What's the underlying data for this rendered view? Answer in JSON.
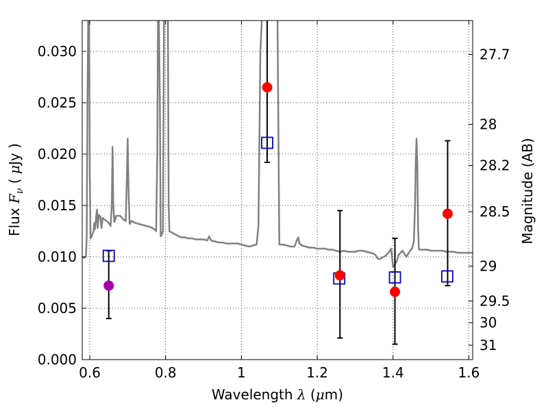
{
  "chart_data": {
    "type": "scatter",
    "xlabel": {
      "prefix": "Wavelength  ",
      "symbol": "λ",
      "units_open": " (",
      "units_mu": "μ",
      "units_rest": "m)"
    },
    "ylabel": {
      "prefix": "Flux  ",
      "symbol": "F",
      "subscript": "ν",
      "units_open": "  ( ",
      "units_mu": "μ",
      "units_rest": "Jy )"
    },
    "y2label": "Magnitude (AB)",
    "xlim": [
      0.58,
      1.61
    ],
    "ylim": [
      0.0,
      0.033
    ],
    "grid": true,
    "x_ticks": [
      {
        "value": 0.6,
        "label": "0.6"
      },
      {
        "value": 0.8,
        "label": "0.8"
      },
      {
        "value": 1.0,
        "label": "1"
      },
      {
        "value": 1.2,
        "label": "1.2"
      },
      {
        "value": 1.4,
        "label": "1.4"
      },
      {
        "value": 1.6,
        "label": "1.6"
      }
    ],
    "y_ticks": [
      {
        "value": 0.0,
        "label": "0.000"
      },
      {
        "value": 0.005,
        "label": "0.005"
      },
      {
        "value": 0.01,
        "label": "0.010"
      },
      {
        "value": 0.015,
        "label": "0.015"
      },
      {
        "value": 0.02,
        "label": "0.020"
      },
      {
        "value": 0.025,
        "label": "0.025"
      },
      {
        "value": 0.03,
        "label": "0.030"
      }
    ],
    "y2_ticks": [
      {
        "label": "27.7",
        "flux": 0.0297
      },
      {
        "label": "28",
        "flux": 0.0229
      },
      {
        "label": "28.2",
        "flux": 0.0189
      },
      {
        "label": "28.5",
        "flux": 0.0144
      },
      {
        "label": "29",
        "flux": 0.0091
      },
      {
        "label": "29.5",
        "flux": 0.0057
      },
      {
        "label": "30",
        "flux": 0.0036
      },
      {
        "label": "31",
        "flux": 0.0014
      }
    ],
    "spectrum": {
      "color": "#808080",
      "points": [
        [
          0.58,
          0.01
        ],
        [
          0.585,
          0.0099
        ],
        [
          0.59,
          0.0101
        ],
        [
          0.592,
          0.012
        ],
        [
          0.594,
          0.025
        ],
        [
          0.596,
          0.034
        ],
        [
          0.598,
          0.034
        ],
        [
          0.6,
          0.018
        ],
        [
          0.602,
          0.0118
        ],
        [
          0.605,
          0.012
        ],
        [
          0.61,
          0.0125
        ],
        [
          0.612,
          0.0133
        ],
        [
          0.614,
          0.0127
        ],
        [
          0.617,
          0.014
        ],
        [
          0.619,
          0.0146
        ],
        [
          0.621,
          0.0128
        ],
        [
          0.624,
          0.0141
        ],
        [
          0.628,
          0.0139
        ],
        [
          0.631,
          0.0128
        ],
        [
          0.634,
          0.0138
        ],
        [
          0.64,
          0.0136
        ],
        [
          0.648,
          0.0134
        ],
        [
          0.655,
          0.013
        ],
        [
          0.658,
          0.015
        ],
        [
          0.66,
          0.0207
        ],
        [
          0.662,
          0.015
        ],
        [
          0.665,
          0.0134
        ],
        [
          0.67,
          0.014
        ],
        [
          0.68,
          0.014
        ],
        [
          0.69,
          0.0136
        ],
        [
          0.695,
          0.0135
        ],
        [
          0.698,
          0.018
        ],
        [
          0.7,
          0.0215
        ],
        [
          0.702,
          0.017
        ],
        [
          0.705,
          0.0132
        ],
        [
          0.71,
          0.0135
        ],
        [
          0.72,
          0.0133
        ],
        [
          0.73,
          0.0132
        ],
        [
          0.74,
          0.0131
        ],
        [
          0.75,
          0.013
        ],
        [
          0.76,
          0.0129
        ],
        [
          0.77,
          0.0127
        ],
        [
          0.775,
          0.0125
        ],
        [
          0.778,
          0.02
        ],
        [
          0.78,
          0.034
        ],
        [
          0.782,
          0.034
        ],
        [
          0.785,
          0.025
        ],
        [
          0.787,
          0.012
        ],
        [
          0.79,
          0.0122
        ],
        [
          0.793,
          0.0125
        ],
        [
          0.796,
          0.034
        ],
        [
          0.8,
          0.034
        ],
        [
          0.803,
          0.034
        ],
        [
          0.806,
          0.034
        ],
        [
          0.808,
          0.015
        ],
        [
          0.81,
          0.0125
        ],
        [
          0.815,
          0.0124
        ],
        [
          0.82,
          0.0123
        ],
        [
          0.83,
          0.0121
        ],
        [
          0.84,
          0.0119
        ],
        [
          0.85,
          0.0119
        ],
        [
          0.86,
          0.0118
        ],
        [
          0.87,
          0.0118
        ],
        [
          0.88,
          0.0117
        ],
        [
          0.89,
          0.0117
        ],
        [
          0.9,
          0.0117
        ],
        [
          0.91,
          0.0116
        ],
        [
          0.915,
          0.012
        ],
        [
          0.92,
          0.0116
        ],
        [
          0.93,
          0.0115
        ],
        [
          0.94,
          0.0114
        ],
        [
          0.95,
          0.0114
        ],
        [
          0.96,
          0.0113
        ],
        [
          0.97,
          0.0113
        ],
        [
          0.98,
          0.0113
        ],
        [
          0.99,
          0.0113
        ],
        [
          1.0,
          0.0112
        ],
        [
          1.01,
          0.0111
        ],
        [
          1.02,
          0.011
        ],
        [
          1.03,
          0.0111
        ],
        [
          1.04,
          0.0112
        ],
        [
          1.045,
          0.013
        ],
        [
          1.05,
          0.03
        ],
        [
          1.055,
          0.034
        ],
        [
          1.06,
          0.034
        ],
        [
          1.065,
          0.034
        ],
        [
          1.07,
          0.034
        ],
        [
          1.075,
          0.034
        ],
        [
          1.08,
          0.034
        ],
        [
          1.085,
          0.034
        ],
        [
          1.09,
          0.034
        ],
        [
          1.095,
          0.034
        ],
        [
          1.098,
          0.02
        ],
        [
          1.1,
          0.0112
        ],
        [
          1.11,
          0.0112
        ],
        [
          1.12,
          0.0111
        ],
        [
          1.13,
          0.011
        ],
        [
          1.14,
          0.011
        ],
        [
          1.145,
          0.0115
        ],
        [
          1.15,
          0.0119
        ],
        [
          1.153,
          0.0113
        ],
        [
          1.16,
          0.0111
        ],
        [
          1.17,
          0.011
        ],
        [
          1.18,
          0.0109
        ],
        [
          1.19,
          0.0109
        ],
        [
          1.2,
          0.0108
        ],
        [
          1.21,
          0.0108
        ],
        [
          1.22,
          0.0108
        ],
        [
          1.23,
          0.0107
        ],
        [
          1.24,
          0.0107
        ],
        [
          1.25,
          0.0106
        ],
        [
          1.26,
          0.0105
        ],
        [
          1.27,
          0.0106
        ],
        [
          1.28,
          0.0105
        ],
        [
          1.29,
          0.0105
        ],
        [
          1.3,
          0.0105
        ],
        [
          1.31,
          0.0106
        ],
        [
          1.32,
          0.0106
        ],
        [
          1.33,
          0.0105
        ],
        [
          1.34,
          0.0104
        ],
        [
          1.35,
          0.0103
        ],
        [
          1.355,
          0.0101
        ],
        [
          1.36,
          0.0098
        ],
        [
          1.365,
          0.0098
        ],
        [
          1.37,
          0.0099
        ],
        [
          1.375,
          0.01
        ],
        [
          1.38,
          0.0101
        ],
        [
          1.385,
          0.0103
        ],
        [
          1.39,
          0.0105
        ],
        [
          1.395,
          0.0108
        ],
        [
          1.4,
          0.009
        ],
        [
          1.405,
          0.0093
        ],
        [
          1.41,
          0.0096
        ],
        [
          1.415,
          0.0102
        ],
        [
          1.42,
          0.0104
        ],
        [
          1.425,
          0.0106
        ],
        [
          1.43,
          0.0103
        ],
        [
          1.435,
          0.01
        ],
        [
          1.44,
          0.0103
        ],
        [
          1.445,
          0.0106
        ],
        [
          1.45,
          0.0108
        ],
        [
          1.455,
          0.0115
        ],
        [
          1.458,
          0.015
        ],
        [
          1.46,
          0.0195
        ],
        [
          1.462,
          0.0215
        ],
        [
          1.464,
          0.019
        ],
        [
          1.466,
          0.013
        ],
        [
          1.468,
          0.0108
        ],
        [
          1.47,
          0.0107
        ],
        [
          1.48,
          0.0107
        ],
        [
          1.49,
          0.0107
        ],
        [
          1.5,
          0.0106
        ],
        [
          1.51,
          0.0106
        ],
        [
          1.52,
          0.0106
        ],
        [
          1.53,
          0.0106
        ],
        [
          1.54,
          0.0105
        ],
        [
          1.55,
          0.0105
        ],
        [
          1.56,
          0.0105
        ],
        [
          1.57,
          0.0104
        ],
        [
          1.58,
          0.0104
        ],
        [
          1.59,
          0.0104
        ],
        [
          1.6,
          0.0104
        ],
        [
          1.61,
          0.0104
        ]
      ]
    },
    "errorbars": [
      {
        "x": 0.65,
        "low": 0.004,
        "high": 0.0106
      },
      {
        "x": 1.068,
        "low": 0.0192,
        "high": 0.034
      },
      {
        "x": 1.26,
        "low": 0.0021,
        "high": 0.0145
      },
      {
        "x": 1.405,
        "low": 0.0015,
        "high": 0.0118
      },
      {
        "x": 1.544,
        "low": 0.0072,
        "high": 0.0213
      }
    ],
    "squares": {
      "color": "#0000cc",
      "points": [
        [
          0.65,
          0.0101
        ],
        [
          1.068,
          0.0211
        ],
        [
          1.258,
          0.0079
        ],
        [
          1.405,
          0.008
        ],
        [
          1.543,
          0.0081
        ]
      ]
    },
    "circles": [
      {
        "x": 0.65,
        "y": 0.0072,
        "color": "#aa00aa"
      },
      {
        "x": 1.068,
        "y": 0.0265,
        "color": "#ff0000"
      },
      {
        "x": 1.26,
        "y": 0.0082,
        "color": "#ff0000"
      },
      {
        "x": 1.405,
        "y": 0.0066,
        "color": "#ff0000"
      },
      {
        "x": 1.544,
        "y": 0.0142,
        "color": "#ff0000"
      }
    ]
  }
}
